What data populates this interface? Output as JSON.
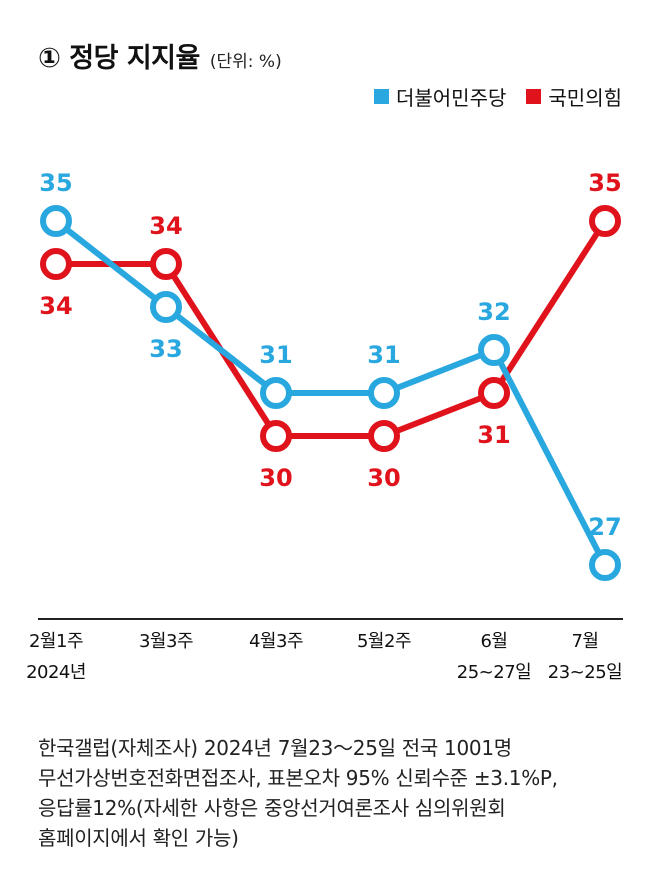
{
  "header": {
    "title": "① 정당 지지율",
    "unit": "(단위: %)"
  },
  "legend": [
    {
      "name": "더불어민주당",
      "color": "#29a7df"
    },
    {
      "name": "국민의힘",
      "color": "#e0121b"
    }
  ],
  "chart_data": {
    "type": "line",
    "categories": [
      "2월1주 2024년",
      "3월3주",
      "4월3주",
      "5월2주",
      "6월 25~27일",
      "7월 23~25일"
    ],
    "category_lines": [
      [
        "2월1주",
        "2024년"
      ],
      [
        "3월3주",
        ""
      ],
      [
        "4월3주",
        ""
      ],
      [
        "5월2주",
        ""
      ],
      [
        "6월",
        "25~27일"
      ],
      [
        "7월",
        "23~25일"
      ]
    ],
    "series": [
      {
        "name": "더불어민주당",
        "color": "#29a7df",
        "values": [
          35,
          33,
          31,
          31,
          32,
          27
        ]
      },
      {
        "name": "국민의힘",
        "color": "#e0121b",
        "values": [
          34,
          34,
          30,
          30,
          31,
          35
        ]
      }
    ],
    "ylim": [
      26,
      36
    ],
    "grid": false,
    "legend_position": "top-right"
  },
  "note": {
    "lines": [
      "한국갤럽(자체조사) 2024년 7월23～25일 전국 1001명",
      "무선가상번호전화면접조사, 표본오차 95% 신뢰수준 ±3.1%P,",
      "응답률12%(자세한 사항은 중앙선거여론조사 심의위원회",
      "홈페이지에서 확인 가능)"
    ]
  }
}
